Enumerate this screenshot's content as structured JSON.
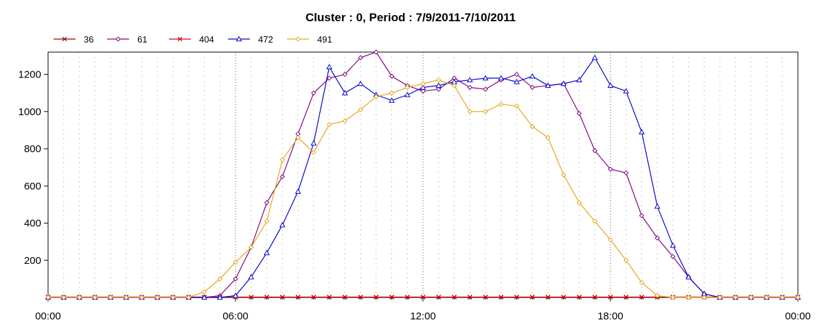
{
  "chart_data": {
    "type": "line",
    "title": "Cluster : 0, Period : 7/9/2011-7/10/2011",
    "xlabel": "",
    "ylabel": "",
    "x_unit": "hours",
    "xlim": [
      0,
      24
    ],
    "ylim": [
      0,
      1320
    ],
    "x_ticks": [
      {
        "value": 0,
        "label": "00:00"
      },
      {
        "value": 6,
        "label": "06:00"
      },
      {
        "value": 12,
        "label": "12:00"
      },
      {
        "value": 18,
        "label": "18:00"
      },
      {
        "value": 24,
        "label": "00:00"
      }
    ],
    "y_ticks": [
      200,
      400,
      600,
      800,
      1000,
      1200
    ],
    "grid": "dotted vertical lines every half hour",
    "legend_position": "top-left",
    "x": [
      0,
      0.5,
      1,
      1.5,
      2,
      2.5,
      3,
      3.5,
      4,
      4.5,
      5,
      5.5,
      6,
      6.5,
      7,
      7.5,
      8,
      8.5,
      9,
      9.5,
      10,
      10.5,
      11,
      11.5,
      12,
      12.5,
      13,
      13.5,
      14,
      14.5,
      15,
      15.5,
      16,
      16.5,
      17,
      17.5,
      18,
      18.5,
      19,
      19.5,
      20,
      20.5,
      21,
      21.5,
      22,
      22.5,
      23,
      23.5,
      24
    ],
    "series": [
      {
        "name": "36",
        "color": "#8B0000",
        "marker": "x",
        "values": [
          2,
          2,
          2,
          2,
          2,
          2,
          2,
          2,
          2,
          2,
          2,
          2,
          2,
          2,
          2,
          2,
          2,
          2,
          2,
          2,
          2,
          2,
          2,
          2,
          2,
          2,
          2,
          2,
          2,
          2,
          2,
          2,
          2,
          2,
          2,
          2,
          2,
          2,
          2,
          2,
          2,
          2,
          2,
          2,
          2,
          2,
          2,
          2,
          2
        ]
      },
      {
        "name": "61",
        "color": "#800080",
        "marker": "diamond",
        "values": [
          0,
          0,
          0,
          0,
          0,
          0,
          0,
          0,
          0,
          0,
          0,
          10,
          100,
          270,
          510,
          650,
          880,
          1100,
          1180,
          1200,
          1290,
          1320,
          1190,
          1140,
          1110,
          1120,
          1180,
          1130,
          1120,
          1170,
          1200,
          1130,
          1140,
          1150,
          990,
          790,
          690,
          670,
          440,
          320,
          220,
          110,
          20,
          0,
          0,
          0,
          0,
          0,
          0
        ]
      },
      {
        "name": "404",
        "color": "#CC0000",
        "marker": "x",
        "values": [
          2,
          2,
          2,
          2,
          2,
          2,
          2,
          2,
          2,
          2,
          2,
          2,
          2,
          2,
          2,
          2,
          2,
          2,
          2,
          2,
          2,
          2,
          2,
          2,
          2,
          2,
          2,
          2,
          2,
          2,
          2,
          2,
          2,
          2,
          2,
          2,
          2,
          2,
          2,
          2,
          2,
          2,
          2,
          2,
          2,
          2,
          2,
          2,
          2
        ]
      },
      {
        "name": "472",
        "color": "#0000CC",
        "marker": "triangle",
        "values": [
          0,
          0,
          0,
          0,
          0,
          0,
          0,
          0,
          0,
          0,
          0,
          0,
          10,
          110,
          240,
          390,
          570,
          830,
          1240,
          1100,
          1150,
          1090,
          1060,
          1090,
          1130,
          1140,
          1160,
          1170,
          1180,
          1180,
          1160,
          1190,
          1140,
          1150,
          1170,
          1290,
          1140,
          1110,
          890,
          490,
          280,
          110,
          20,
          0,
          0,
          0,
          0,
          0,
          0
        ]
      },
      {
        "name": "491",
        "color": "#E8A317",
        "marker": "diamond",
        "values": [
          0,
          0,
          0,
          0,
          0,
          0,
          0,
          0,
          0,
          0,
          30,
          100,
          190,
          270,
          410,
          740,
          860,
          780,
          930,
          950,
          1010,
          1080,
          1100,
          1130,
          1150,
          1170,
          1140,
          1000,
          1000,
          1040,
          1030,
          920,
          860,
          660,
          510,
          410,
          310,
          200,
          80,
          10,
          0,
          0,
          0,
          0,
          0,
          0,
          0,
          0,
          0
        ]
      }
    ]
  }
}
